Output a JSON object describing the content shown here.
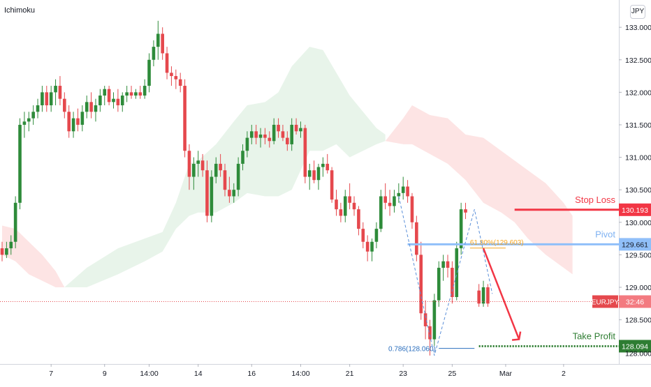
{
  "header": {
    "indicator": "Ichimoku",
    "currency": "JPY"
  },
  "colors": {
    "up": "#2e8b3a",
    "down": "#e5484d",
    "cloud_bull": "#e8f4ea",
    "cloud_bear": "#fde4e4",
    "stop": "#f23645",
    "pivot": "#90bff9",
    "tp": "#2e7d32",
    "fib": "#f5a623",
    "fib_low": "#2a6ebd"
  },
  "chart_data": {
    "type": "candlestick",
    "symbol": "EURJPY",
    "ylim": [
      127.82,
      133.42
    ],
    "y_ticks": [
      "133.000",
      "132.500",
      "132.000",
      "131.500",
      "131.000",
      "130.500",
      "130.000",
      "129.500",
      "129.000",
      "128.500"
    ],
    "x_ticks": [
      {
        "i": 11,
        "label": "7"
      },
      {
        "i": 23,
        "label": "9"
      },
      {
        "i": 33,
        "label": "14:00"
      },
      {
        "i": 44,
        "label": "14"
      },
      {
        "i": 56,
        "label": "16"
      },
      {
        "i": 67,
        "label": "14:00"
      },
      {
        "i": 78,
        "label": "21"
      },
      {
        "i": 90,
        "label": "23"
      },
      {
        "i": 101,
        "label": "25"
      },
      {
        "i": 113,
        "label": "Mar"
      },
      {
        "i": 126,
        "label": "2"
      }
    ],
    "candles": [
      [
        129.6,
        129.7,
        129.4,
        129.5
      ],
      [
        129.5,
        129.7,
        129.45,
        129.6
      ],
      [
        129.6,
        129.8,
        129.5,
        129.7
      ],
      [
        129.7,
        130.4,
        129.6,
        130.3
      ],
      [
        130.3,
        131.6,
        130.2,
        131.5
      ],
      [
        131.5,
        131.7,
        131.3,
        131.55
      ],
      [
        131.55,
        131.7,
        131.4,
        131.6
      ],
      [
        131.6,
        131.8,
        131.5,
        131.7
      ],
      [
        131.7,
        131.9,
        131.6,
        131.8
      ],
      [
        131.8,
        132.1,
        131.7,
        132.0
      ],
      [
        132.0,
        132.1,
        131.7,
        131.8
      ],
      [
        131.8,
        132.1,
        131.7,
        132.0
      ],
      [
        132.0,
        132.2,
        131.8,
        132.1
      ],
      [
        132.1,
        132.25,
        131.8,
        131.9
      ],
      [
        131.9,
        132.0,
        131.6,
        131.7
      ],
      [
        131.7,
        131.8,
        131.3,
        131.4
      ],
      [
        131.4,
        131.7,
        131.3,
        131.6
      ],
      [
        131.6,
        131.75,
        131.4,
        131.5
      ],
      [
        131.5,
        131.8,
        131.4,
        131.7
      ],
      [
        131.7,
        131.95,
        131.6,
        131.85
      ],
      [
        131.85,
        132.0,
        131.6,
        131.7
      ],
      [
        131.7,
        131.9,
        131.55,
        131.8
      ],
      [
        131.8,
        132.05,
        131.7,
        131.95
      ],
      [
        131.95,
        132.1,
        131.8,
        132.05
      ],
      [
        132.05,
        132.1,
        131.8,
        131.85
      ],
      [
        131.85,
        132.0,
        131.75,
        131.9
      ],
      [
        131.9,
        132.05,
        131.7,
        131.8
      ],
      [
        131.8,
        132.0,
        131.7,
        131.95
      ],
      [
        131.95,
        132.1,
        131.85,
        132.0
      ],
      [
        132.0,
        132.1,
        131.9,
        131.95
      ],
      [
        131.95,
        132.05,
        131.9,
        132.0
      ],
      [
        132.0,
        132.1,
        131.9,
        131.95
      ],
      [
        131.95,
        132.2,
        131.9,
        132.1
      ],
      [
        132.1,
        132.6,
        132.0,
        132.5
      ],
      [
        132.5,
        132.8,
        132.4,
        132.7
      ],
      [
        132.7,
        133.1,
        132.5,
        132.9
      ],
      [
        132.9,
        133.0,
        132.5,
        132.6
      ],
      [
        132.6,
        132.7,
        132.2,
        132.3
      ],
      [
        132.3,
        132.4,
        132.1,
        132.25
      ],
      [
        132.25,
        132.35,
        132.05,
        132.2
      ],
      [
        132.2,
        132.3,
        132.0,
        132.1
      ],
      [
        132.1,
        132.2,
        131.0,
        131.1
      ],
      [
        131.1,
        131.2,
        130.5,
        130.7
      ],
      [
        130.7,
        131.0,
        130.5,
        130.9
      ],
      [
        130.9,
        131.1,
        130.7,
        130.95
      ],
      [
        130.95,
        131.05,
        130.7,
        130.8
      ],
      [
        130.8,
        130.95,
        130.0,
        130.1
      ],
      [
        130.1,
        130.8,
        130.0,
        130.7
      ],
      [
        130.7,
        131.0,
        130.6,
        130.9
      ],
      [
        130.9,
        131.05,
        130.7,
        130.8
      ],
      [
        130.8,
        130.9,
        130.4,
        130.5
      ],
      [
        130.5,
        130.7,
        130.3,
        130.4
      ],
      [
        130.4,
        130.6,
        130.3,
        130.5
      ],
      [
        130.5,
        131.0,
        130.4,
        130.9
      ],
      [
        130.9,
        131.2,
        130.8,
        131.1
      ],
      [
        131.1,
        131.4,
        131.0,
        131.3
      ],
      [
        131.3,
        131.5,
        131.2,
        131.4
      ],
      [
        131.4,
        131.5,
        131.2,
        131.3
      ],
      [
        131.3,
        131.45,
        131.15,
        131.35
      ],
      [
        131.35,
        131.45,
        131.2,
        131.3
      ],
      [
        131.3,
        131.4,
        131.15,
        131.25
      ],
      [
        131.25,
        131.6,
        131.2,
        131.5
      ],
      [
        131.5,
        131.6,
        131.3,
        131.4
      ],
      [
        131.4,
        131.5,
        131.25,
        131.3
      ],
      [
        131.3,
        131.4,
        131.1,
        131.2
      ],
      [
        131.2,
        131.6,
        131.1,
        131.5
      ],
      [
        131.5,
        131.6,
        131.35,
        131.4
      ],
      [
        131.4,
        131.55,
        131.3,
        131.45
      ],
      [
        131.45,
        131.5,
        130.6,
        130.7
      ],
      [
        130.7,
        130.9,
        130.5,
        130.8
      ],
      [
        130.8,
        130.95,
        130.6,
        130.65
      ],
      [
        130.65,
        130.9,
        130.5,
        130.85
      ],
      [
        130.85,
        131.0,
        130.7,
        130.9
      ],
      [
        130.9,
        131.05,
        130.75,
        130.8
      ],
      [
        130.8,
        130.85,
        130.3,
        130.35
      ],
      [
        130.35,
        130.5,
        130.1,
        130.2
      ],
      [
        130.2,
        130.3,
        130.0,
        130.1
      ],
      [
        130.1,
        130.5,
        130.0,
        130.4
      ],
      [
        130.4,
        130.6,
        130.2,
        130.3
      ],
      [
        130.3,
        130.4,
        130.1,
        130.2
      ],
      [
        130.2,
        130.25,
        129.8,
        129.9
      ],
      [
        129.9,
        130.0,
        129.6,
        129.7
      ],
      [
        129.7,
        129.8,
        129.4,
        129.55
      ],
      [
        129.55,
        129.75,
        129.4,
        129.7
      ],
      [
        129.7,
        130.0,
        129.6,
        129.9
      ],
      [
        129.9,
        130.5,
        129.85,
        130.4
      ],
      [
        130.4,
        130.6,
        130.2,
        130.3
      ],
      [
        130.3,
        130.5,
        130.1,
        130.25
      ],
      [
        130.25,
        130.5,
        130.15,
        130.4
      ],
      [
        130.4,
        130.6,
        130.3,
        130.45
      ],
      [
        130.45,
        130.7,
        130.35,
        130.55
      ],
      [
        130.55,
        130.65,
        130.3,
        130.4
      ],
      [
        130.4,
        130.45,
        129.9,
        130.0
      ],
      [
        130.0,
        130.1,
        129.4,
        129.5
      ],
      [
        129.5,
        129.7,
        128.5,
        128.6
      ],
      [
        128.6,
        128.8,
        128.2,
        128.4
      ],
      [
        128.4,
        128.5,
        127.95,
        128.2
      ],
      [
        128.2,
        128.9,
        128.1,
        128.8
      ],
      [
        128.8,
        129.4,
        128.7,
        129.3
      ],
      [
        129.3,
        129.5,
        129.1,
        129.4
      ],
      [
        129.4,
        129.5,
        129.15,
        129.3
      ],
      [
        129.3,
        129.4,
        128.75,
        128.85
      ],
      [
        128.85,
        129.7,
        128.8,
        129.6
      ],
      [
        129.6,
        130.3,
        129.5,
        130.2
      ],
      [
        130.2,
        130.3,
        130.05,
        130.15
      ],
      null,
      null,
      [
        128.95,
        129.05,
        128.7,
        128.75
      ],
      [
        128.75,
        129.1,
        128.7,
        129.0
      ],
      [
        129.0,
        129.05,
        128.7,
        128.75
      ]
    ],
    "cloud": {
      "bull": [
        [
          14,
          129.0,
          129.0
        ],
        [
          19,
          129.3,
          129.0
        ],
        [
          26,
          129.6,
          129.2
        ],
        [
          32,
          129.75,
          129.4
        ],
        [
          36,
          129.85,
          129.55
        ],
        [
          39,
          130.3,
          129.9
        ],
        [
          42,
          130.9,
          130.1
        ],
        [
          44,
          130.95,
          130.15
        ],
        [
          48,
          131.2,
          130.15
        ],
        [
          52,
          131.55,
          130.3
        ],
        [
          55,
          131.8,
          130.45
        ],
        [
          59,
          131.85,
          130.4
        ],
        [
          62,
          132.0,
          130.4
        ],
        [
          65,
          132.4,
          130.5
        ],
        [
          67,
          132.55,
          130.8
        ],
        [
          69,
          132.7,
          131.1
        ],
        [
          72,
          132.65,
          131.1
        ],
        [
          75,
          132.3,
          131.2
        ],
        [
          78,
          131.95,
          131.0
        ],
        [
          81,
          131.7,
          131.1
        ],
        [
          84,
          131.45,
          131.2
        ],
        [
          86,
          131.35,
          131.25
        ]
      ],
      "bear": [
        [
          0,
          129.95,
          129.5
        ],
        [
          3,
          129.9,
          129.4
        ],
        [
          6,
          129.7,
          129.2
        ],
        [
          9,
          129.5,
          129.1
        ],
        [
          12,
          129.25,
          129.0
        ],
        [
          14,
          129.0,
          129.0
        ],
        [
          86,
          131.25,
          131.25
        ],
        [
          90,
          131.6,
          131.2
        ],
        [
          92,
          131.8,
          131.2
        ],
        [
          96,
          131.65,
          131.05
        ],
        [
          100,
          131.6,
          130.9
        ],
        [
          104,
          131.35,
          130.65
        ],
        [
          108,
          131.3,
          130.3
        ],
        [
          112,
          131.1,
          130.15
        ],
        [
          115,
          130.95,
          130.0
        ],
        [
          118,
          130.8,
          129.75
        ],
        [
          122,
          130.6,
          129.5
        ],
        [
          126,
          130.3,
          129.3
        ],
        [
          128,
          130.1,
          129.2
        ]
      ]
    },
    "levels": {
      "stop_loss": {
        "label": "Stop Loss",
        "value": "130.193"
      },
      "pivot": {
        "label": "Pivot",
        "value": "129.661"
      },
      "take_profit": {
        "label": "Take Profit",
        "value": "128.094"
      },
      "current": {
        "symbol": "EURJPY",
        "price": 128.78,
        "countdown": "32:46"
      }
    },
    "fib": {
      "upper": {
        "label": "61.80%(129.603)",
        "value": 129.603
      },
      "lower": {
        "label": "0.786(128.060)",
        "value": 128.06
      }
    },
    "low_price_partial": "128.000",
    "annotations": {
      "dashed_path": [
        [
          89,
          130.4
        ],
        [
          97,
          127.95
        ],
        [
          106,
          130.2
        ],
        [
          110,
          128.9
        ]
      ],
      "arrow": [
        [
          108,
          129.6
        ],
        [
          116,
          128.2
        ]
      ]
    }
  }
}
